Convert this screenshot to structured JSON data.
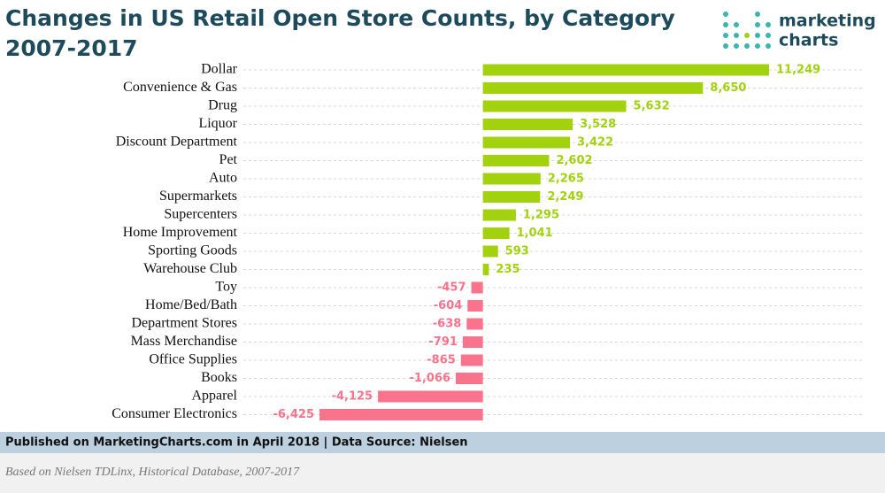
{
  "chart_data": {
    "type": "bar",
    "orientation": "horizontal",
    "title": [
      "Changes in US Retail Open Store Counts, by Category",
      "2007-2017"
    ],
    "categories": [
      "Dollar",
      "Convenience & Gas",
      "Drug",
      "Liquor",
      "Discount Department",
      "Pet",
      "Auto",
      "Supermarkets",
      "Supercenters",
      "Home Improvement",
      "Sporting Goods",
      "Warehouse Club",
      "Toy",
      "Home/Bed/Bath",
      "Department Stores",
      "Mass Merchandise",
      "Office Supplies",
      "Books",
      "Apparel",
      "Consumer Electronics"
    ],
    "values": [
      11249,
      8650,
      5632,
      3528,
      3422,
      2602,
      2265,
      2249,
      1295,
      1041,
      593,
      235,
      -457,
      -604,
      -638,
      -791,
      -865,
      -1066,
      -4125,
      -6425
    ],
    "value_labels": [
      "11,249",
      "8,650",
      "5,632",
      "3,528",
      "3,422",
      "2,602",
      "2,265",
      "2,249",
      "1,295",
      "1,041",
      "593",
      "235",
      "-457",
      "-604",
      "-638",
      "-791",
      "-865",
      "-1,066",
      "-4,125",
      "-6,425"
    ],
    "color": "#a2d20d",
    "negative_color": "#f8738b",
    "grid": true
  },
  "logo": [
    "marketing",
    "charts"
  ],
  "footer": {
    "published": "Published on MarketingCharts.com in April 2018 | Data Source: Nielsen",
    "note": "Based on Nielsen TDLinx, Historical Database, 2007-2017"
  }
}
